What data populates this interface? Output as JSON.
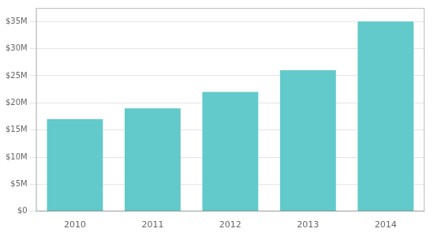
{
  "chart_data": {
    "type": "bar",
    "categories": [
      "2010",
      "2011",
      "2012",
      "2013",
      "2014"
    ],
    "values": [
      17000000,
      19000000,
      22000000,
      26000000,
      35000000
    ],
    "color": "#62caca",
    "ylim": [
      0,
      37500000
    ],
    "yticks": [
      {
        "value": 0,
        "label": "$0"
      },
      {
        "value": 5000000,
        "label": "$5M"
      },
      {
        "value": 10000000,
        "label": "$10M"
      },
      {
        "value": 15000000,
        "label": "$15M"
      },
      {
        "value": 20000000,
        "label": "$20M"
      },
      {
        "value": 25000000,
        "label": "$25M"
      },
      {
        "value": 30000000,
        "label": "$30M"
      },
      {
        "value": 35000000,
        "label": "$35M"
      }
    ],
    "grid": true
  }
}
